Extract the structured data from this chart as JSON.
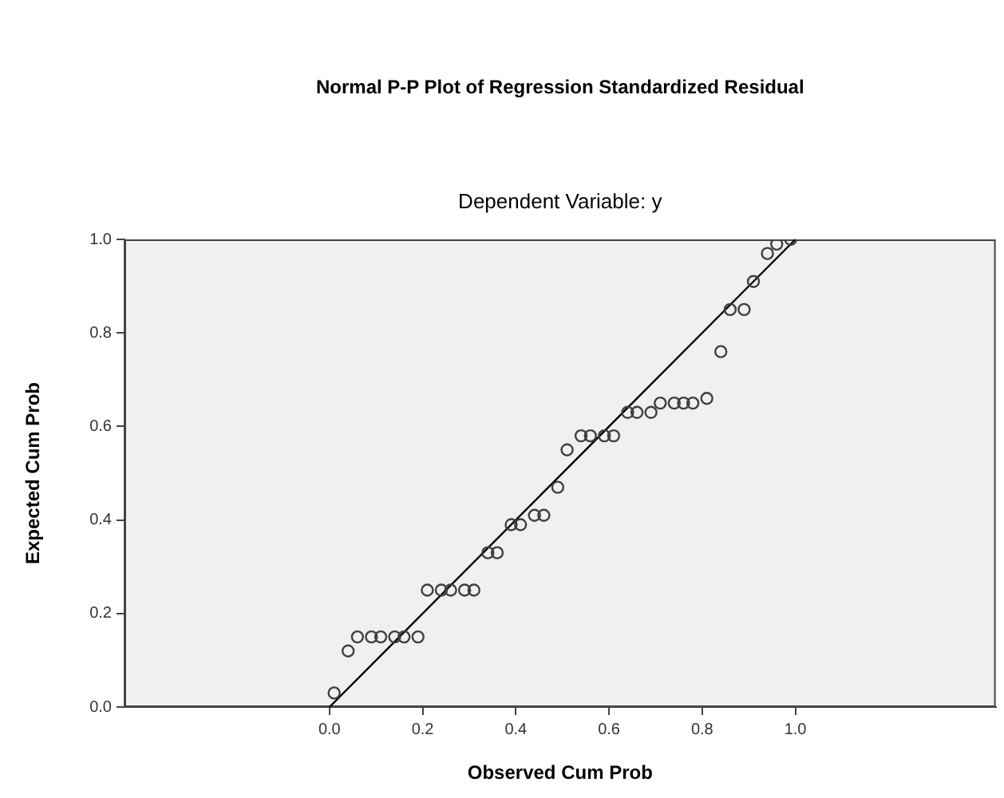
{
  "chart_data": {
    "type": "scatter",
    "title": "Normal P-P Plot of Regression Standardized Residual",
    "subtitle": "Dependent Variable: y",
    "xlabel": "Observed Cum Prob",
    "ylabel": "Expected Cum Prob",
    "xlim": [
      -0.44,
      1.43
    ],
    "ylim": [
      0,
      1
    ],
    "xticks": [
      {
        "value": 0,
        "label": "0.0"
      },
      0.2,
      0.4,
      0.6,
      0.8,
      {
        "value": 1,
        "label": "1.0"
      }
    ],
    "yticks": [
      {
        "value": 0,
        "label": "0.0"
      },
      0.2,
      0.4,
      0.6,
      0.8,
      {
        "value": 1,
        "label": "1.0"
      }
    ],
    "grid": false,
    "legend": false,
    "series": [
      {
        "marker": "circle",
        "color": "#404040",
        "x": [
          0.01,
          0.04,
          0.06,
          0.09,
          0.11,
          0.14,
          0.16,
          0.19,
          0.21,
          0.24,
          0.26,
          0.29,
          0.31,
          0.34,
          0.36,
          0.39,
          0.41,
          0.44,
          0.46,
          0.49,
          0.51,
          0.54,
          0.56,
          0.59,
          0.61,
          0.64,
          0.66,
          0.69,
          0.71,
          0.74,
          0.76,
          0.78,
          0.81,
          0.84,
          0.86,
          0.89,
          0.91,
          0.94,
          0.96,
          0.99
        ],
        "values": [
          0.03,
          0.12,
          0.15,
          0.15,
          0.15,
          0.15,
          0.15,
          0.15,
          0.25,
          0.25,
          0.25,
          0.25,
          0.25,
          0.33,
          0.33,
          0.39,
          0.39,
          0.41,
          0.41,
          0.47,
          0.55,
          0.58,
          0.58,
          0.58,
          0.58,
          0.63,
          0.63,
          0.63,
          0.65,
          0.65,
          0.65,
          0.65,
          0.66,
          0.76,
          0.85,
          0.85,
          0.91,
          0.97,
          0.99,
          1.0
        ]
      },
      {
        "type": "line",
        "marker": "none",
        "color": "#000000",
        "x": [
          0,
          1
        ],
        "values": [
          0,
          1
        ]
      }
    ]
  }
}
